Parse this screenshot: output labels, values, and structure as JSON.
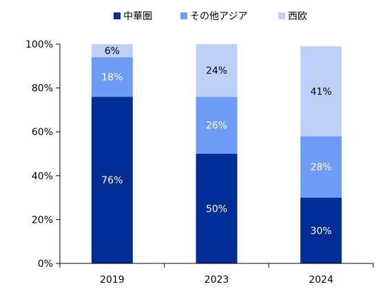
{
  "chart_data": {
    "type": "bar",
    "stacked": true,
    "categories": [
      "2019",
      "2023",
      "2024"
    ],
    "series": [
      {
        "name": "中華圏",
        "values": [
          76,
          50,
          30
        ],
        "color": "#002D96",
        "label_color": "#ffffff"
      },
      {
        "name": "その他アジア",
        "values": [
          18,
          26,
          28
        ],
        "color": "#6E9BF5",
        "label_color": "#ffffff"
      },
      {
        "name": "西欧",
        "values": [
          6,
          24,
          41
        ],
        "color": "#BCD0FA",
        "label_color": "#000000"
      }
    ],
    "data_labels": [
      [
        "76%",
        "50%",
        "30%"
      ],
      [
        "18%",
        "26%",
        "28%"
      ],
      [
        "6%",
        "24%",
        "41%"
      ]
    ],
    "y_ticks": [
      "0%",
      "20%",
      "40%",
      "60%",
      "80%",
      "100%"
    ],
    "y_tick_values": [
      0,
      20,
      40,
      60,
      80,
      100
    ],
    "ylim": [
      0,
      100
    ],
    "grid": false,
    "legend_position": "top-center"
  }
}
